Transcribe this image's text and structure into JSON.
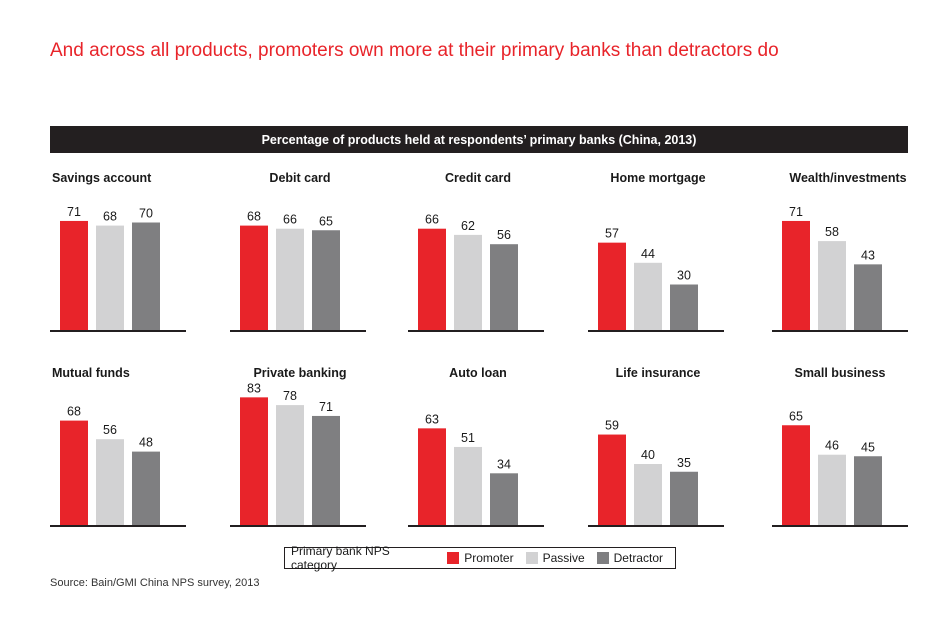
{
  "headline": "And across all products, promoters own more at their primary banks than detractors do",
  "banner": "Percentage of products held at respondents’ primary banks (China, 2013)",
  "colors": {
    "promoter": "#e8242a",
    "passive": "#d2d2d3",
    "detractor": "#7f7f81",
    "title": "#e8242a"
  },
  "legend": {
    "title": "Primary bank NPS category",
    "items": [
      "Promoter",
      "Passive",
      "Detractor"
    ]
  },
  "source": "Source: Bain/GMI China NPS survey, 2013",
  "chart_data": [
    {
      "type": "bar",
      "title": "Savings account",
      "categories": [
        "Promoter",
        "Passive",
        "Detractor"
      ],
      "values": [
        71,
        68,
        70
      ],
      "ylim": [
        0,
        85
      ]
    },
    {
      "type": "bar",
      "title": "Debit card",
      "categories": [
        "Promoter",
        "Passive",
        "Detractor"
      ],
      "values": [
        68,
        66,
        65
      ],
      "ylim": [
        0,
        85
      ]
    },
    {
      "type": "bar",
      "title": "Credit card",
      "categories": [
        "Promoter",
        "Passive",
        "Detractor"
      ],
      "values": [
        66,
        62,
        56
      ],
      "ylim": [
        0,
        85
      ]
    },
    {
      "type": "bar",
      "title": "Home mortgage",
      "categories": [
        "Promoter",
        "Passive",
        "Detractor"
      ],
      "values": [
        57,
        44,
        30
      ],
      "ylim": [
        0,
        85
      ]
    },
    {
      "type": "bar",
      "title": "Wealth/investments",
      "categories": [
        "Promoter",
        "Passive",
        "Detractor"
      ],
      "values": [
        71,
        58,
        43
      ],
      "ylim": [
        0,
        85
      ]
    },
    {
      "type": "bar",
      "title": "Mutual funds",
      "categories": [
        "Promoter",
        "Passive",
        "Detractor"
      ],
      "values": [
        68,
        56,
        48
      ],
      "ylim": [
        0,
        85
      ]
    },
    {
      "type": "bar",
      "title": "Private banking",
      "categories": [
        "Promoter",
        "Passive",
        "Detractor"
      ],
      "values": [
        83,
        78,
        71
      ],
      "ylim": [
        0,
        85
      ]
    },
    {
      "type": "bar",
      "title": "Auto loan",
      "categories": [
        "Promoter",
        "Passive",
        "Detractor"
      ],
      "values": [
        63,
        51,
        34
      ],
      "ylim": [
        0,
        85
      ]
    },
    {
      "type": "bar",
      "title": "Life insurance",
      "categories": [
        "Promoter",
        "Passive",
        "Detractor"
      ],
      "values": [
        59,
        40,
        35
      ],
      "ylim": [
        0,
        85
      ]
    },
    {
      "type": "bar",
      "title": "Small business",
      "categories": [
        "Promoter",
        "Passive",
        "Detractor"
      ],
      "values": [
        65,
        46,
        45
      ],
      "ylim": [
        0,
        85
      ]
    }
  ]
}
